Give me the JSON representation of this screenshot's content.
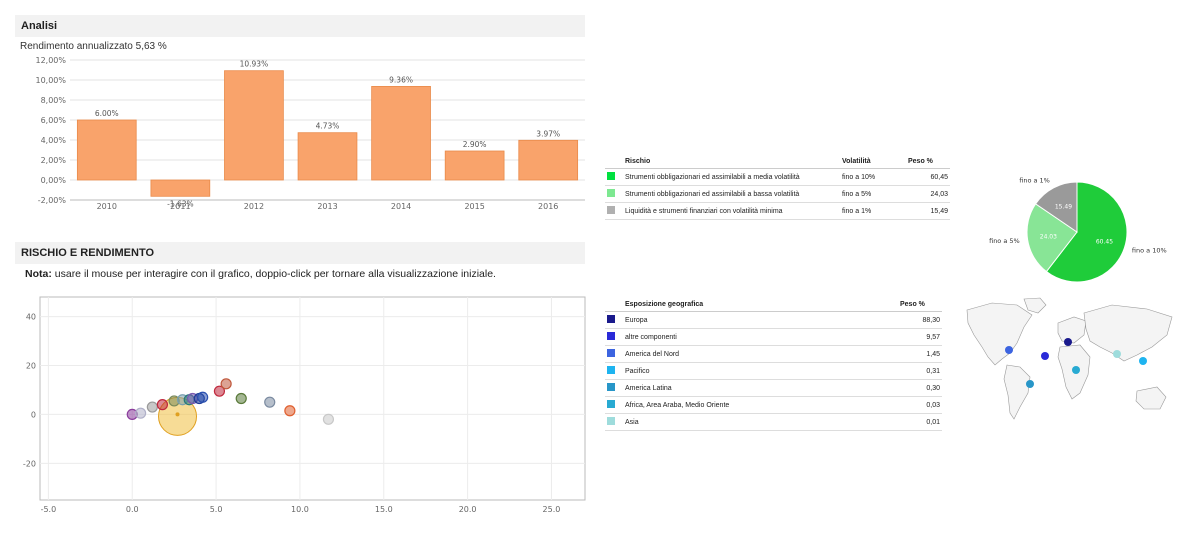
{
  "analisi": {
    "title": "Analisi",
    "subtitle": "Rendimento annualizzato 5,63 %"
  },
  "chart_data": [
    {
      "type": "bar",
      "categories": [
        "2010",
        "2011",
        "2012",
        "2013",
        "2014",
        "2015",
        "2016"
      ],
      "values": [
        6.0,
        -1.63,
        10.93,
        4.73,
        9.36,
        2.9,
        3.97
      ],
      "value_labels": [
        "6.00%",
        "-1.63%",
        "10.93%",
        "4.73%",
        "9.36%",
        "2.90%",
        "3.97%"
      ],
      "y_tick_labels": [
        "12,00%",
        "10,00%",
        "8,00%",
        "6,00%",
        "4,00%",
        "2,00%",
        "0,00%",
        "-2,00%"
      ],
      "y_ticks": [
        12,
        10,
        8,
        6,
        4,
        2,
        0,
        -2
      ],
      "ylim": [
        -2,
        12
      ],
      "bar_color": "#f9a36b",
      "grid": true
    },
    {
      "type": "scatter",
      "x_tick_labels": [
        "-5.0",
        "0.0",
        "5.0",
        "10.0",
        "15.0",
        "20.0",
        "25.0"
      ],
      "x_ticks": [
        -5,
        0,
        5,
        10,
        15,
        20,
        25
      ],
      "y_tick_labels": [
        "40",
        "20",
        "0",
        "-20"
      ],
      "y_ticks": [
        40,
        20,
        0,
        -20
      ],
      "xlim": [
        -5.5,
        27
      ],
      "ylim": [
        -35,
        48
      ],
      "points": [
        {
          "x": 0.0,
          "y": 0.0,
          "color": "#8a3c9c"
        },
        {
          "x": 0.5,
          "y": 0.5,
          "color": "#b0b0c8"
        },
        {
          "x": 1.2,
          "y": 3.0,
          "color": "#9a9a9a"
        },
        {
          "x": 1.8,
          "y": 4.0,
          "color": "#c0283c"
        },
        {
          "x": 2.5,
          "y": 5.5,
          "color": "#7a8a5a"
        },
        {
          "x": 3.0,
          "y": 6.0,
          "color": "#7aa0b0"
        },
        {
          "x": 3.4,
          "y": 6.0,
          "color": "#2a7a7a"
        },
        {
          "x": 3.6,
          "y": 6.5,
          "color": "#7a5ab0"
        },
        {
          "x": 4.0,
          "y": 6.5,
          "color": "#1e3c96"
        },
        {
          "x": 4.2,
          "y": 7.0,
          "color": "#2a50b0"
        },
        {
          "x": 5.2,
          "y": 9.5,
          "color": "#c0283c"
        },
        {
          "x": 5.6,
          "y": 12.5,
          "color": "#c0583c"
        },
        {
          "x": 6.5,
          "y": 6.5,
          "color": "#5a7a3a"
        },
        {
          "x": 8.2,
          "y": 5.0,
          "color": "#7a8aa0"
        },
        {
          "x": 9.4,
          "y": 1.5,
          "color": "#e06030"
        },
        {
          "x": 11.7,
          "y": -2.0,
          "color": "#c8c8c8"
        }
      ],
      "highlight": {
        "x": 2.7,
        "y": 0.0,
        "color": "#f0c040"
      }
    },
    {
      "type": "pie",
      "labels": [
        "fino a 10%",
        "fino a 5%",
        "fino a 1%"
      ],
      "values": [
        60.45,
        24.03,
        15.49
      ],
      "value_labels": [
        "60.45",
        "24.03",
        "15.49"
      ],
      "colors": [
        "#1fcc3a",
        "#88e596",
        "#9a9a9a"
      ]
    }
  ],
  "rischio_rendimento": {
    "title": "RISCHIO E RENDIMENTO",
    "note_bold": "Nota:",
    "note_text": " usare il mouse per interagire con il grafico, doppio-click per tornare alla visualizzazione iniziale."
  },
  "risk_table": {
    "headers": [
      "Rischio",
      "Volatilità",
      "Peso %"
    ],
    "rows": [
      {
        "color": "#00e040",
        "name": "Strumenti obbligazionari ed assimilabili a media volatilità",
        "vol": "fino a 10%",
        "peso": "60,45"
      },
      {
        "color": "#7de891",
        "name": "Strumenti obbligazionari ed assimilabili a bassa volatilità",
        "vol": "fino a 5%",
        "peso": "24,03"
      },
      {
        "color": "#b0b0b0",
        "name": "Liquidità e strumenti finanziari con volatilità minima",
        "vol": "fino a 1%",
        "peso": "15,49"
      }
    ]
  },
  "geo_table": {
    "headers": [
      "Esposizione geografica",
      "Peso %"
    ],
    "rows": [
      {
        "color": "#1a1a8c",
        "name": "Europa",
        "peso": "88,30"
      },
      {
        "color": "#2a2ad8",
        "name": "altre componenti",
        "peso": "9,57"
      },
      {
        "color": "#3c64e0",
        "name": "America del Nord",
        "peso": "1,45"
      },
      {
        "color": "#1eb4f0",
        "name": "Pacifico",
        "peso": "0,31"
      },
      {
        "color": "#2896c8",
        "name": "America Latina",
        "peso": "0,30"
      },
      {
        "color": "#28aad2",
        "name": "Africa, Area Araba, Medio Oriente",
        "peso": "0,03"
      },
      {
        "color": "#9edcdc",
        "name": "Asia",
        "peso": "0,01"
      }
    ]
  }
}
